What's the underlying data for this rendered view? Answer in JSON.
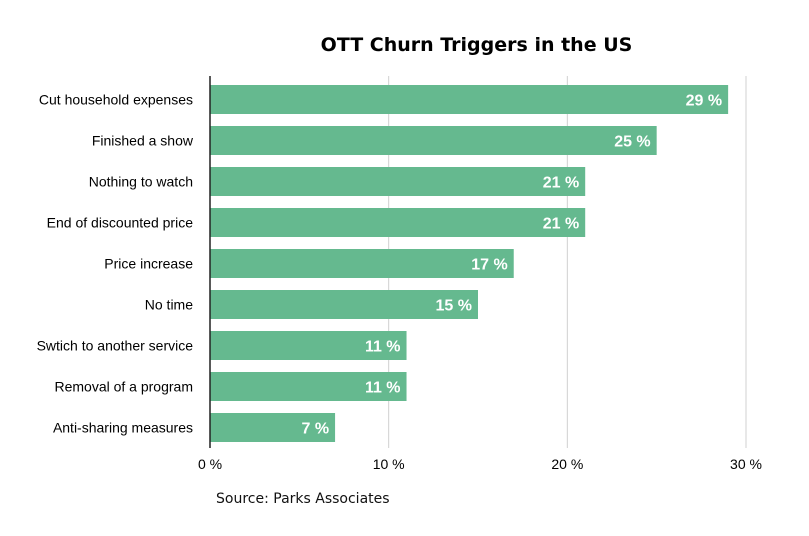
{
  "chart_data": {
    "type": "bar",
    "orientation": "horizontal",
    "title": "OTT Churn Triggers in the US",
    "xlabel": "",
    "ylabel": "",
    "categories": [
      "Cut household expenses",
      "Finished a show",
      "Nothing to watch",
      "End of discounted price",
      "Price increase",
      "No time",
      "Swtich to another service",
      "Removal of a program",
      "Anti-sharing measures"
    ],
    "values": [
      29,
      25,
      21,
      21,
      17,
      15,
      11,
      11,
      7
    ],
    "data_labels": [
      "29 %",
      "25 %",
      "21 %",
      "21 %",
      "17 %",
      "15 %",
      "11 %",
      "11 %",
      "7 %"
    ],
    "xlim": [
      0,
      30
    ],
    "x_ticks": [
      0,
      10,
      20,
      30
    ],
    "x_tick_labels": [
      "0 %",
      "10 %",
      "20 %",
      "30 %"
    ],
    "grid": "vertical",
    "legend": "none",
    "bar_color": "#65b98f",
    "source": "Source: Parks Associates"
  }
}
